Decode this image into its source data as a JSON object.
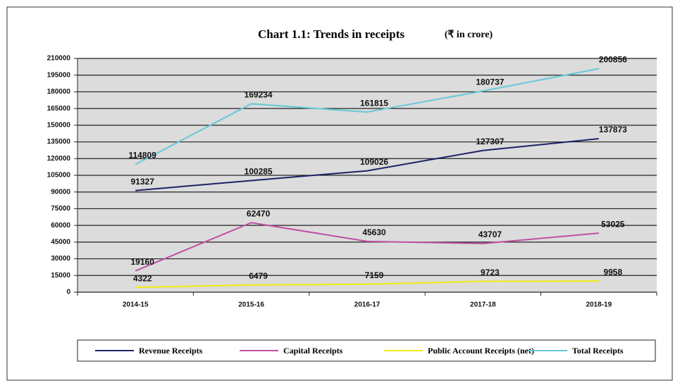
{
  "chart_data": {
    "type": "line",
    "title": "Chart 1.1: Trends in receipts",
    "subtitle": "(₹ in crore)",
    "categories": [
      "2014-15",
      "2015-16",
      "2016-17",
      "2017-18",
      "2018-19"
    ],
    "series": [
      {
        "name": "Revenue Receipts",
        "color": "#1f2266",
        "values": [
          91327,
          100285,
          109026,
          127307,
          137873
        ]
      },
      {
        "name": "Capital Receipts",
        "color": "#c04fa0",
        "values": [
          19160,
          62470,
          45630,
          43707,
          53025
        ]
      },
      {
        "name": "Public Account Receipts (net)",
        "color": "#eeee10",
        "values": [
          4322,
          6479,
          7159,
          9723,
          9958
        ]
      },
      {
        "name": "Total Receipts",
        "color": "#66c8d8",
        "values": [
          114809,
          169234,
          161815,
          180737,
          200856
        ]
      }
    ],
    "ylim": [
      0,
      210000
    ],
    "yticks": [
      0,
      15000,
      30000,
      45000,
      60000,
      75000,
      90000,
      105000,
      120000,
      135000,
      150000,
      165000,
      180000,
      195000,
      210000
    ],
    "grid": true,
    "legend": "bottom"
  }
}
